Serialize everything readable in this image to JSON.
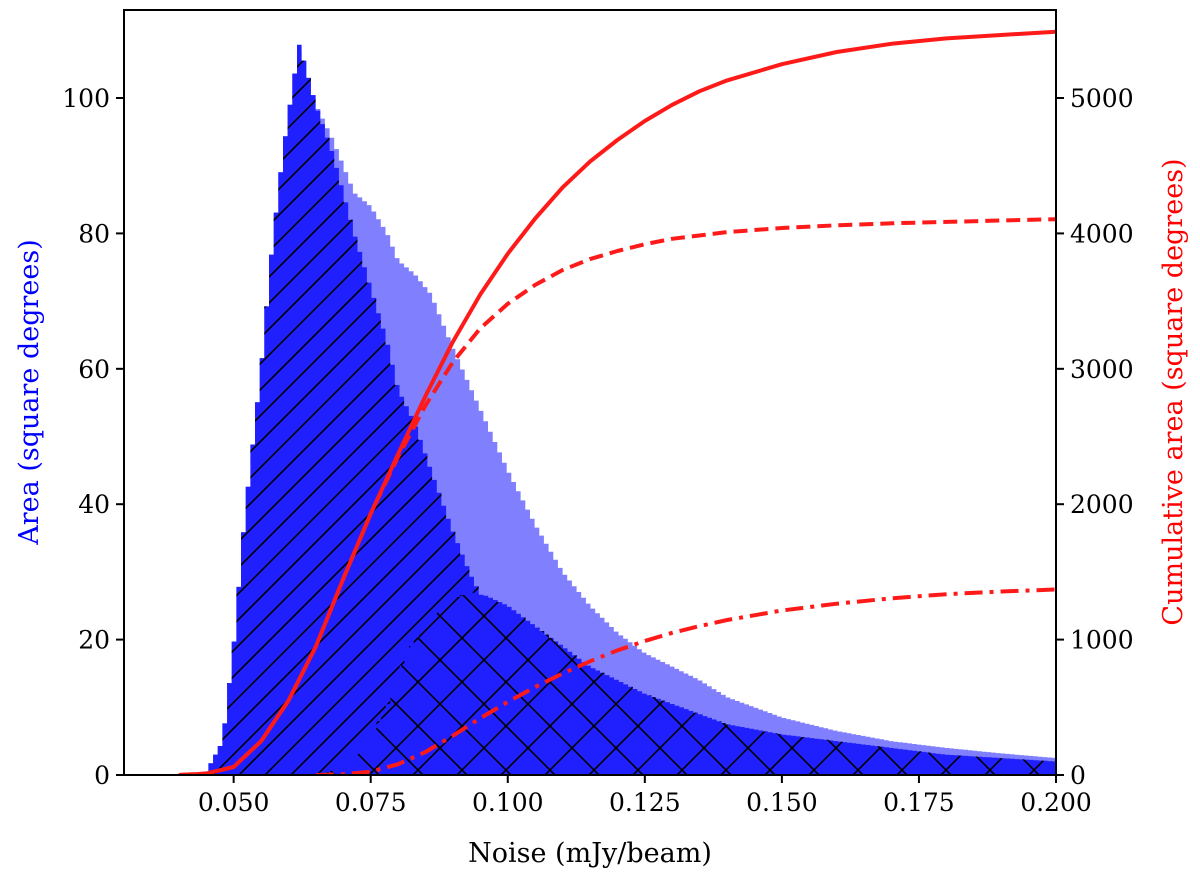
{
  "chart_data": {
    "type": "histogram",
    "xlabel": "Noise (mJy/beam)",
    "ylabel_left": "Area (square degrees)",
    "ylabel_right": "Cumulative area (square degrees)",
    "xlim": [
      0.03,
      0.2
    ],
    "ylim_left": [
      0,
      113
    ],
    "ylim_right": [
      0,
      5650
    ],
    "xticks": [
      "0.050",
      "0.075",
      "0.100",
      "0.125",
      "0.150",
      "0.175",
      "0.200"
    ],
    "xtick_values": [
      0.05,
      0.075,
      0.1,
      0.125,
      0.15,
      0.175,
      0.2
    ],
    "yticks_left": [
      0,
      20,
      40,
      60,
      80,
      100
    ],
    "yticks_right": [
      0,
      1000,
      2000,
      3000,
      4000,
      5000
    ],
    "grid": false,
    "colors": {
      "left_axis_label": "#0000ff",
      "right_axis_label": "#ff0000",
      "total_hist": "#8080ff",
      "subset_hist": "#2020ff",
      "cumulative_line": "#ff1a1a"
    },
    "histograms": [
      {
        "style": "light-blue-fill",
        "points": [
          [
            0.042,
            0
          ],
          [
            0.045,
            0.5
          ],
          [
            0.048,
            5
          ],
          [
            0.05,
            19
          ],
          [
            0.052,
            38
          ],
          [
            0.055,
            60
          ],
          [
            0.057,
            78
          ],
          [
            0.059,
            92
          ],
          [
            0.061,
            103
          ],
          [
            0.062,
            107
          ],
          [
            0.063,
            105
          ],
          [
            0.065,
            99
          ],
          [
            0.068,
            94
          ],
          [
            0.07,
            90
          ],
          [
            0.072,
            86
          ],
          [
            0.075,
            84
          ],
          [
            0.078,
            80
          ],
          [
            0.08,
            76
          ],
          [
            0.083,
            74
          ],
          [
            0.086,
            71
          ],
          [
            0.09,
            63
          ],
          [
            0.095,
            54
          ],
          [
            0.1,
            45
          ],
          [
            0.105,
            37
          ],
          [
            0.11,
            30
          ],
          [
            0.115,
            25
          ],
          [
            0.12,
            21
          ],
          [
            0.125,
            18
          ],
          [
            0.13,
            16
          ],
          [
            0.135,
            14
          ],
          [
            0.14,
            11.5
          ],
          [
            0.15,
            8.5
          ],
          [
            0.16,
            6.5
          ],
          [
            0.17,
            5
          ],
          [
            0.18,
            4
          ],
          [
            0.19,
            3.2
          ],
          [
            0.2,
            2.5
          ]
        ]
      },
      {
        "style": "blue-fill-single-hatch",
        "points": [
          [
            0.042,
            0
          ],
          [
            0.045,
            0.5
          ],
          [
            0.048,
            5
          ],
          [
            0.05,
            19
          ],
          [
            0.052,
            38
          ],
          [
            0.055,
            60
          ],
          [
            0.057,
            78
          ],
          [
            0.059,
            92
          ],
          [
            0.061,
            103
          ],
          [
            0.062,
            108
          ],
          [
            0.063,
            105
          ],
          [
            0.065,
            99
          ],
          [
            0.068,
            92
          ],
          [
            0.07,
            86
          ],
          [
            0.072,
            80
          ],
          [
            0.075,
            72
          ],
          [
            0.078,
            64
          ],
          [
            0.08,
            57
          ],
          [
            0.083,
            52
          ],
          [
            0.086,
            45
          ],
          [
            0.09,
            36
          ],
          [
            0.093,
            30
          ],
          [
            0.096,
            25
          ],
          [
            0.1,
            18
          ],
          [
            0.105,
            12
          ],
          [
            0.11,
            7
          ],
          [
            0.115,
            4
          ],
          [
            0.12,
            2
          ],
          [
            0.125,
            1
          ],
          [
            0.13,
            0.5
          ],
          [
            0.14,
            0.2
          ],
          [
            0.2,
            0
          ]
        ]
      },
      {
        "style": "blue-fill-cross-hatch",
        "points": [
          [
            0.065,
            0
          ],
          [
            0.07,
            1
          ],
          [
            0.073,
            3
          ],
          [
            0.075,
            6
          ],
          [
            0.078,
            10
          ],
          [
            0.08,
            15
          ],
          [
            0.083,
            20
          ],
          [
            0.086,
            23
          ],
          [
            0.088,
            25
          ],
          [
            0.09,
            26
          ],
          [
            0.093,
            27
          ],
          [
            0.096,
            26.5
          ],
          [
            0.1,
            25
          ],
          [
            0.105,
            22
          ],
          [
            0.11,
            19
          ],
          [
            0.115,
            16
          ],
          [
            0.12,
            14
          ],
          [
            0.125,
            12
          ],
          [
            0.13,
            10.5
          ],
          [
            0.135,
            9
          ],
          [
            0.14,
            7.5
          ],
          [
            0.15,
            6
          ],
          [
            0.16,
            5
          ],
          [
            0.17,
            4
          ],
          [
            0.18,
            3
          ],
          [
            0.19,
            2.5
          ],
          [
            0.2,
            2
          ]
        ]
      }
    ],
    "cumulative_lines": [
      {
        "style": "solid",
        "points": [
          [
            0.04,
            0
          ],
          [
            0.045,
            10
          ],
          [
            0.05,
            60
          ],
          [
            0.055,
            250
          ],
          [
            0.06,
            550
          ],
          [
            0.065,
            950
          ],
          [
            0.07,
            1450
          ],
          [
            0.075,
            1930
          ],
          [
            0.08,
            2370
          ],
          [
            0.085,
            2800
          ],
          [
            0.09,
            3200
          ],
          [
            0.095,
            3550
          ],
          [
            0.1,
            3850
          ],
          [
            0.105,
            4110
          ],
          [
            0.11,
            4340
          ],
          [
            0.115,
            4530
          ],
          [
            0.12,
            4690
          ],
          [
            0.125,
            4830
          ],
          [
            0.13,
            4950
          ],
          [
            0.135,
            5050
          ],
          [
            0.14,
            5130
          ],
          [
            0.15,
            5250
          ],
          [
            0.16,
            5340
          ],
          [
            0.17,
            5400
          ],
          [
            0.18,
            5440
          ],
          [
            0.19,
            5465
          ],
          [
            0.2,
            5490
          ]
        ]
      },
      {
        "style": "dashed",
        "points": [
          [
            0.04,
            0
          ],
          [
            0.045,
            10
          ],
          [
            0.05,
            60
          ],
          [
            0.055,
            250
          ],
          [
            0.06,
            550
          ],
          [
            0.065,
            950
          ],
          [
            0.07,
            1450
          ],
          [
            0.075,
            1930
          ],
          [
            0.08,
            2350
          ],
          [
            0.085,
            2730
          ],
          [
            0.09,
            3050
          ],
          [
            0.095,
            3300
          ],
          [
            0.1,
            3480
          ],
          [
            0.105,
            3620
          ],
          [
            0.11,
            3730
          ],
          [
            0.115,
            3810
          ],
          [
            0.12,
            3870
          ],
          [
            0.125,
            3920
          ],
          [
            0.13,
            3960
          ],
          [
            0.14,
            4010
          ],
          [
            0.15,
            4040
          ],
          [
            0.16,
            4060
          ],
          [
            0.17,
            4075
          ],
          [
            0.18,
            4085
          ],
          [
            0.19,
            4095
          ],
          [
            0.2,
            4105
          ]
        ]
      },
      {
        "style": "dash-dot",
        "points": [
          [
            0.065,
            0
          ],
          [
            0.07,
            5
          ],
          [
            0.075,
            25
          ],
          [
            0.08,
            80
          ],
          [
            0.085,
            170
          ],
          [
            0.09,
            290
          ],
          [
            0.095,
            420
          ],
          [
            0.1,
            540
          ],
          [
            0.105,
            650
          ],
          [
            0.11,
            750
          ],
          [
            0.115,
            840
          ],
          [
            0.12,
            920
          ],
          [
            0.125,
            990
          ],
          [
            0.13,
            1050
          ],
          [
            0.135,
            1100
          ],
          [
            0.14,
            1145
          ],
          [
            0.15,
            1215
          ],
          [
            0.16,
            1265
          ],
          [
            0.17,
            1305
          ],
          [
            0.18,
            1335
          ],
          [
            0.19,
            1355
          ],
          [
            0.2,
            1370
          ]
        ]
      }
    ]
  }
}
